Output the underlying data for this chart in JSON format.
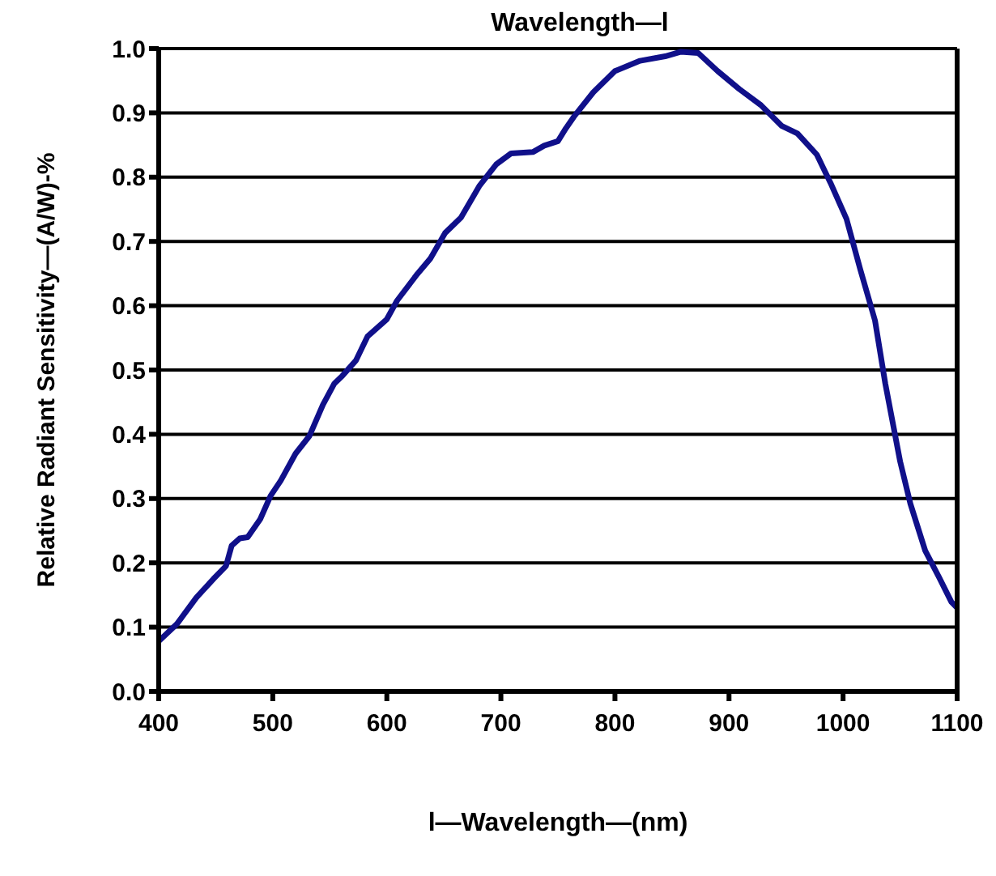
{
  "chart_data": {
    "type": "line",
    "title": "Wavelength—l",
    "xlabel": "l—Wavelength—(nm)",
    "ylabel": "Relative Radiant Sensitivity—(A/W)-%",
    "x": [
      400,
      416,
      433,
      448,
      459,
      464,
      471,
      478,
      489,
      498,
      507,
      520,
      532,
      544,
      554,
      561,
      573,
      583,
      600,
      609,
      627,
      638,
      651,
      665,
      681,
      696,
      709,
      728,
      738,
      750,
      757,
      764,
      781,
      800,
      822,
      844,
      858,
      873,
      890,
      909,
      928,
      946,
      960,
      977,
      989,
      1003,
      1015,
      1028,
      1037,
      1050,
      1059,
      1072,
      1084,
      1095,
      1100
    ],
    "series": [
      {
        "color": "#10108a",
        "values": [
          0.078,
          0.105,
          0.146,
          0.175,
          0.195,
          0.227,
          0.238,
          0.24,
          0.268,
          0.304,
          0.328,
          0.37,
          0.397,
          0.446,
          0.479,
          0.491,
          0.515,
          0.552,
          0.579,
          0.608,
          0.65,
          0.673,
          0.713,
          0.737,
          0.786,
          0.82,
          0.837,
          0.839,
          0.849,
          0.856,
          0.876,
          0.894,
          0.932,
          0.965,
          0.981,
          0.988,
          0.995,
          0.993,
          0.965,
          0.937,
          0.912,
          0.88,
          0.868,
          0.835,
          0.791,
          0.735,
          0.657,
          0.577,
          0.479,
          0.358,
          0.292,
          0.219,
          0.178,
          0.139,
          0.13
        ]
      }
    ],
    "xlim": [
      400,
      1100
    ],
    "xticks": [
      400,
      500,
      600,
      700,
      800,
      900,
      1000,
      1100
    ],
    "ylim": [
      0,
      1
    ],
    "yticks": [
      {
        "value": 0,
        "label": "0.0"
      },
      0.1,
      0.2,
      0.3,
      0.4,
      0.5,
      0.6,
      0.7,
      0.8,
      0.9,
      {
        "value": 1,
        "label": "1.0"
      }
    ],
    "grid": "y",
    "marker": "none",
    "line_style": "solid"
  }
}
